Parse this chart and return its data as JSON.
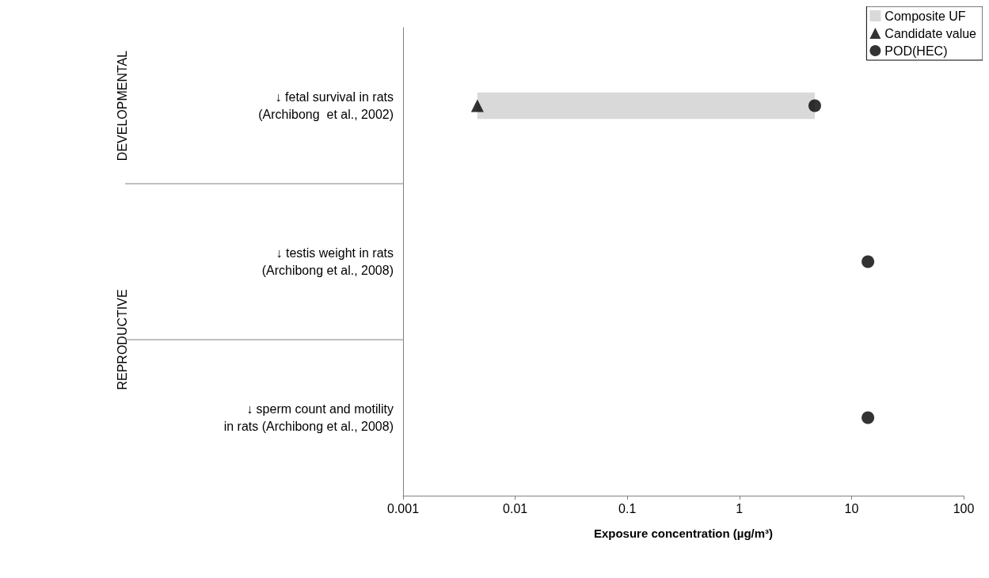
{
  "chart_data": {
    "type": "scatter",
    "orientation": "horizontal",
    "log": "x",
    "categories": [
      "↓ fetal survival in rats\n(Archibong  et al., 2002)",
      "↓ testis weight in rats\n(Archibong et al., 2008)",
      "↓ sperm count and motility\nin rats (Archibong et al., 2008)"
    ],
    "xlim": [
      0.001,
      100
    ],
    "xticks": [
      0.001,
      0.01,
      0.1,
      1,
      10,
      100
    ],
    "xlabel": "Exposure concentration (µg/m³)",
    "annotations": [
      "DEVELOPMENTAL",
      "REPRODUCTIVE"
    ],
    "legend": "top right",
    "grid": false,
    "series": [
      {
        "name": "Composite UF",
        "type": "bar",
        "color": "#d9d9d9",
        "base": [
          0.0046,
          null,
          null
        ],
        "values": [
          4.7,
          null,
          null
        ]
      },
      {
        "name": "Candidate value",
        "marker": "triangle",
        "color": "#000000",
        "values": [
          0.0046,
          null,
          null
        ]
      },
      {
        "name": "POD(HEC)",
        "marker": "circle",
        "color": "#000000",
        "values": [
          4.7,
          14,
          14
        ]
      }
    ]
  }
}
